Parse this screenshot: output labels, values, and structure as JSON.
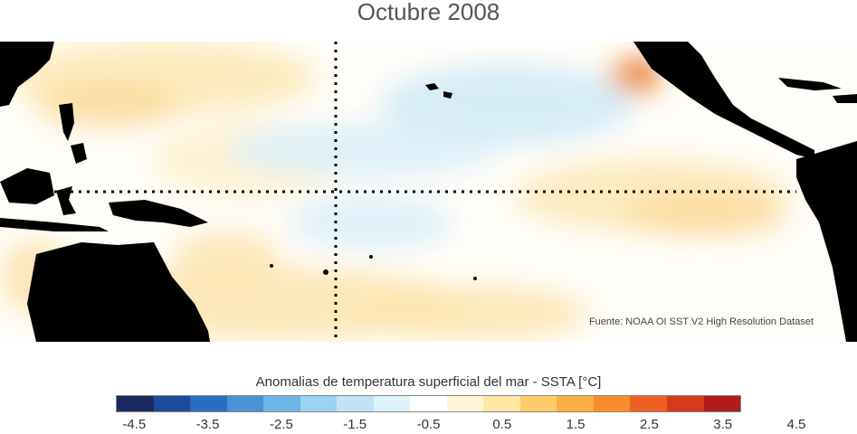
{
  "title": "Octubre 2008",
  "source": "Fuente: NOAA OI SST V2 High Resolution Dataset",
  "colorbar": {
    "label": "Anomalias de temperatura superficial del mar - SSTA  [°C]",
    "colors": [
      "#1a2a5e",
      "#1e4a9a",
      "#2a6cc0",
      "#4a92d4",
      "#6fb4e6",
      "#9bd3f3",
      "#c0e4f6",
      "#dff1f9",
      "#ffffff",
      "#fff5d8",
      "#ffe6a4",
      "#fdcb6a",
      "#fbae43",
      "#f78d2c",
      "#ec6123",
      "#d53a1c",
      "#b21b1b"
    ],
    "ticks": [
      "-4.5",
      "-3.5",
      "-2.5",
      "-1.5",
      "-0.5",
      "0.5",
      "1.5",
      "2.5",
      "3.5",
      "4.5"
    ]
  },
  "map": {
    "region": "Pacifico tropical",
    "equator_line": "dotted",
    "dateline": "dotted"
  }
}
